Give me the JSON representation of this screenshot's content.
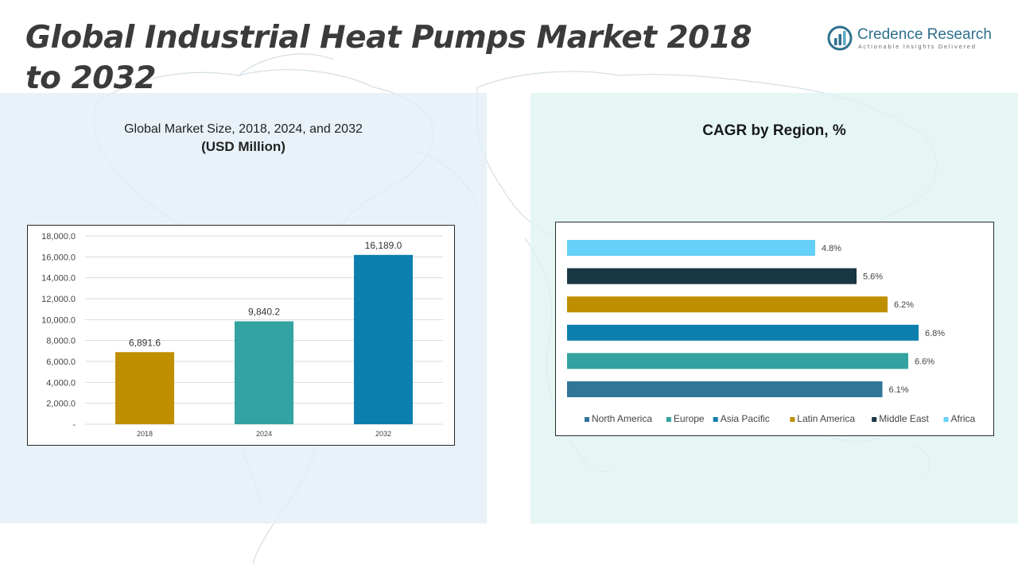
{
  "page": {
    "title": "Global Industrial Heat Pumps Market 2018 to 2032"
  },
  "logo": {
    "name_part1": "Credence",
    "name_part2": "Research",
    "tagline": "Actionable Insights Delivered"
  },
  "left_panel": {
    "heading": "Global Market Size, 2018, 2024, and 2032",
    "unit": "(USD Million)"
  },
  "right_panel": {
    "heading": "CAGR by Region, %"
  },
  "colors": {
    "gold": "#BF8F00",
    "teal": "#33A3A1",
    "blue": "#0D7FAF",
    "steel": "#2F7697",
    "dark": "#193745",
    "sky": "#65D0F8"
  },
  "chart_data": [
    {
      "type": "bar",
      "title": "Global Market Size, 2018, 2024, and 2032",
      "ylabel": "(USD Million)",
      "categories": [
        "2018",
        "2024",
        "2032"
      ],
      "values": [
        6891.6,
        9840.2,
        16189.0
      ],
      "data_labels": [
        "6,891.6",
        "9,840.2",
        "16,189.0"
      ],
      "bar_colors": [
        "#BF8F00",
        "#33A3A1",
        "#0D7FAF"
      ],
      "ylim": [
        0,
        18000
      ],
      "yticks": [
        0,
        2000,
        4000,
        6000,
        8000,
        10000,
        12000,
        14000,
        16000,
        18000
      ],
      "ytick_labels": [
        "-",
        "2,000.0",
        "4,000.0",
        "6,000.0",
        "8,000.0",
        "10,000.0",
        "12,000.0",
        "14,000.0",
        "16,000.0",
        "18,000.0"
      ],
      "grid": true,
      "legend": "none"
    },
    {
      "type": "bar",
      "orientation": "horizontal",
      "title": "CAGR by Region, %",
      "categories": [
        "North America",
        "Europe",
        "Asia Pacific",
        "Latin America",
        "Middle East",
        "Africa"
      ],
      "values": [
        6.1,
        6.6,
        6.8,
        6.2,
        5.6,
        4.8
      ],
      "data_labels": [
        "6.1%",
        "6.6%",
        "6.8%",
        "6.2%",
        "5.6%",
        "4.8%"
      ],
      "bar_colors": [
        "#2F7697",
        "#33A3A1",
        "#0D7FAF",
        "#BF8F00",
        "#193745",
        "#65D0F8"
      ],
      "xlim": [
        0,
        8
      ],
      "grid": false,
      "legend": "bottom"
    }
  ]
}
